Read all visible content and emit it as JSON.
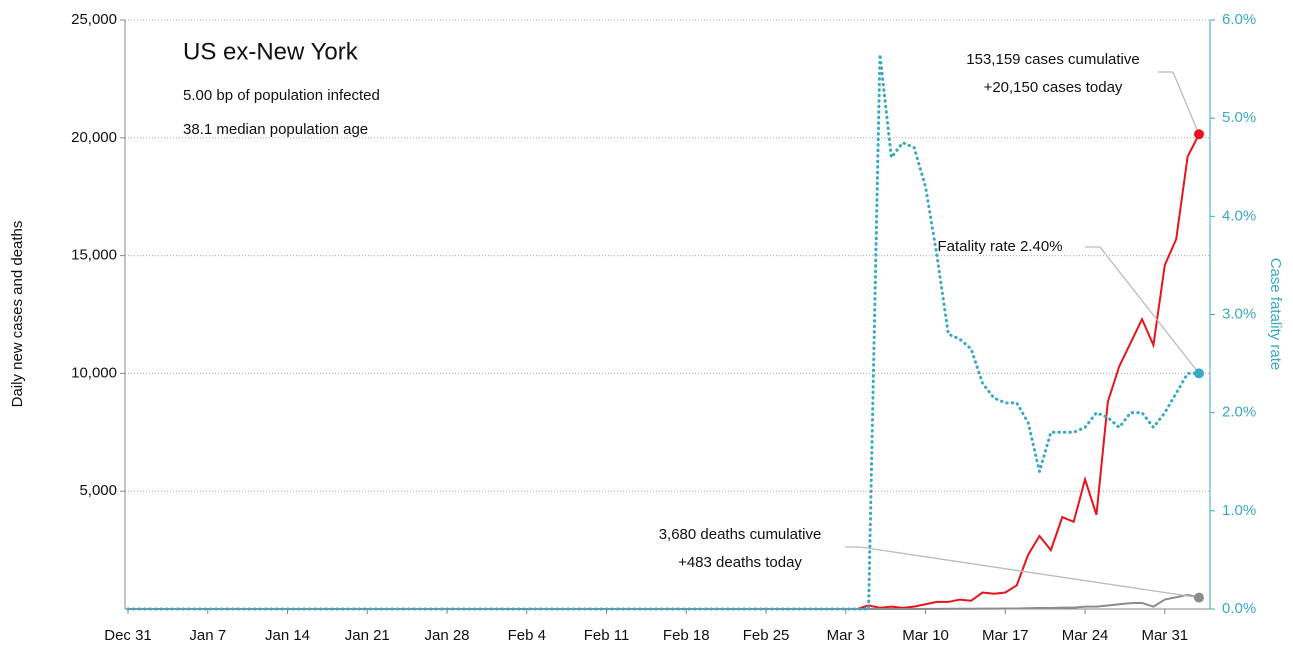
{
  "chart_data": {
    "type": "line",
    "title": "US ex-New York",
    "subtitle": [
      "5.00 bp of population infected",
      "38.1 median population age"
    ],
    "ylabel": "Daily new cases and deaths",
    "y2label": "Case fatality rate",
    "categories": [
      "Dec 31",
      null,
      null,
      null,
      null,
      null,
      null,
      "Jan 7",
      null,
      null,
      null,
      null,
      null,
      null,
      "Jan 14",
      null,
      null,
      null,
      null,
      null,
      null,
      "Jan 21",
      null,
      null,
      null,
      null,
      null,
      null,
      "Jan 28",
      null,
      null,
      null,
      null,
      null,
      null,
      "Feb 4",
      null,
      null,
      null,
      null,
      null,
      null,
      "Feb 11",
      null,
      null,
      null,
      null,
      null,
      null,
      "Feb 18",
      null,
      null,
      null,
      null,
      null,
      null,
      "Feb 25",
      null,
      null,
      null,
      null,
      null,
      null,
      "Mar 3",
      null,
      null,
      null,
      null,
      null,
      null,
      "Mar 10",
      null,
      null,
      null,
      null,
      null,
      null,
      "Mar 17",
      null,
      null,
      null,
      null,
      null,
      null,
      "Mar 24",
      null,
      null,
      null,
      null,
      null,
      null,
      "Mar 31",
      null,
      null,
      null
    ],
    "series": [
      {
        "name": "cases",
        "color": "#e8141b",
        "values": [
          0,
          0,
          0,
          0,
          0,
          0,
          0,
          0,
          0,
          0,
          0,
          0,
          0,
          0,
          0,
          0,
          0,
          0,
          0,
          0,
          0,
          0,
          0,
          0,
          0,
          0,
          0,
          0,
          0,
          0,
          0,
          0,
          0,
          0,
          0,
          0,
          0,
          0,
          0,
          0,
          0,
          0,
          0,
          0,
          0,
          0,
          0,
          0,
          0,
          0,
          0,
          0,
          0,
          0,
          0,
          0,
          0,
          0,
          0,
          0,
          0,
          0,
          0,
          0,
          0,
          150,
          50,
          100,
          50,
          100,
          200,
          300,
          300,
          400,
          350,
          700,
          650,
          700,
          1000,
          2300,
          3100,
          2500,
          3900,
          3700,
          5500,
          4000,
          8800,
          10300,
          11300,
          12300,
          11200,
          14600,
          15700,
          19200,
          20150
        ]
      },
      {
        "name": "deaths",
        "color": "#8c8c8c",
        "values": [
          0,
          0,
          0,
          0,
          0,
          0,
          0,
          0,
          0,
          0,
          0,
          0,
          0,
          0,
          0,
          0,
          0,
          0,
          0,
          0,
          0,
          0,
          0,
          0,
          0,
          0,
          0,
          0,
          0,
          0,
          0,
          0,
          0,
          0,
          0,
          0,
          0,
          0,
          0,
          0,
          0,
          0,
          0,
          0,
          0,
          0,
          0,
          0,
          0,
          0,
          0,
          0,
          0,
          0,
          0,
          0,
          0,
          0,
          0,
          0,
          0,
          0,
          0,
          0,
          0,
          0,
          0,
          0,
          0,
          0,
          5,
          5,
          10,
          10,
          10,
          15,
          15,
          20,
          20,
          30,
          40,
          40,
          60,
          60,
          100,
          100,
          150,
          200,
          250,
          260,
          100,
          400,
          500,
          600,
          483
        ]
      },
      {
        "name": "fatality rate",
        "color": "#3aa9c1",
        "axis": "y2",
        "dotted": true,
        "values": [
          0,
          0,
          0,
          0,
          0,
          0,
          0,
          0,
          0,
          0,
          0,
          0,
          0,
          0,
          0,
          0,
          0,
          0,
          0,
          0,
          0,
          0,
          0,
          0,
          0,
          0,
          0,
          0,
          0,
          0,
          0,
          0,
          0,
          0,
          0,
          0,
          0,
          0,
          0,
          0,
          0,
          0,
          0,
          0,
          0,
          0,
          0,
          0,
          0,
          0,
          0,
          0,
          0,
          0,
          0,
          0,
          0,
          0,
          0,
          0,
          0,
          0,
          0,
          0,
          0,
          0,
          5.65,
          4.6,
          4.75,
          4.7,
          4.3,
          3.6,
          2.8,
          2.75,
          2.65,
          2.3,
          2.15,
          2.1,
          2.1,
          1.9,
          1.4,
          1.8,
          1.8,
          1.8,
          1.85,
          2.0,
          1.95,
          1.85,
          2.0,
          2.0,
          1.85,
          2.0,
          2.2,
          2.4,
          2.4
        ]
      }
    ],
    "ylim": [
      0,
      25000
    ],
    "yticks": [
      {
        "value": 5000,
        "label": "5,000"
      },
      {
        "value": 10000,
        "label": "10,000"
      },
      {
        "value": 15000,
        "label": "15,000"
      },
      {
        "value": 20000,
        "label": "20,000"
      },
      {
        "value": 25000,
        "label": "25,000"
      }
    ],
    "y2lim": [
      0,
      6
    ],
    "y2ticks": [
      {
        "value": 0,
        "label": "0.0%"
      },
      {
        "value": 1,
        "label": "1.0%"
      },
      {
        "value": 2,
        "label": "2.0%"
      },
      {
        "value": 3,
        "label": "3.0%"
      },
      {
        "value": 4,
        "label": "4.0%"
      },
      {
        "value": 5,
        "label": "5.0%"
      },
      {
        "value": 6,
        "label": "6.0%"
      }
    ],
    "grid": true,
    "annotations": [
      {
        "series": 0,
        "text": [
          "153,159 cases cumulative",
          "+20,150 cases today"
        ]
      },
      {
        "series": 2,
        "text": [
          "Fatality rate 2.40%"
        ]
      },
      {
        "series": 1,
        "text": [
          "3,680 deaths cumulative",
          "+483 deaths today"
        ]
      }
    ]
  }
}
